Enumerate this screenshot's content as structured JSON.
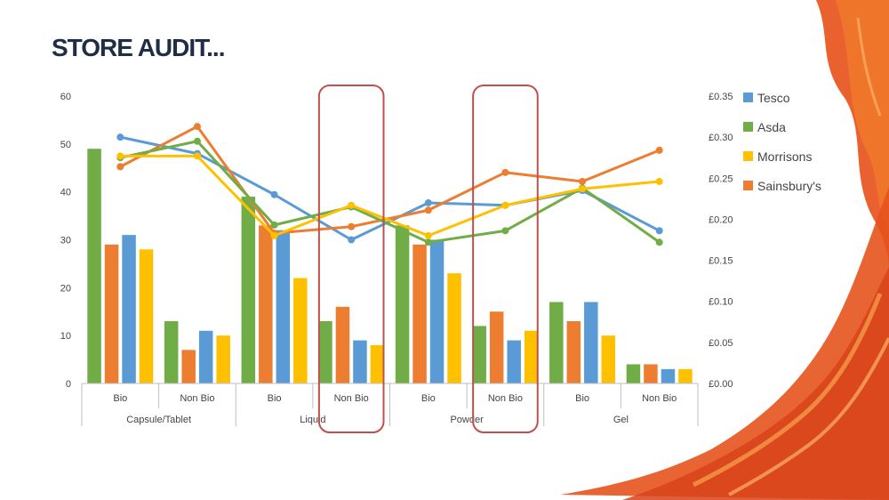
{
  "slide": {
    "title": "STORE AUDIT..."
  },
  "highlight_color": "#c0504d",
  "chart_data": {
    "type": "bar",
    "groups": [
      "Capsule/Tablet",
      "Liquid",
      "Powder",
      "Gel"
    ],
    "subcategories": [
      "Bio",
      "Non Bio"
    ],
    "categories": [
      "Bio",
      "Non Bio",
      "Bio",
      "Non Bio",
      "Bio",
      "Non Bio",
      "Bio",
      "Non Bio"
    ],
    "ylim": [
      0,
      60
    ],
    "y_ticks": [
      "0",
      "10",
      "20",
      "30",
      "40",
      "50",
      "60"
    ],
    "y2lim": [
      0,
      0.35
    ],
    "y2_ticks": [
      "£0.00",
      "£0.05",
      "£0.10",
      "£0.15",
      "£0.20",
      "£0.25",
      "£0.30",
      "£0.35"
    ],
    "bar_order": [
      "Asda",
      "Sainsbury's",
      "Tesco",
      "Morrisons"
    ],
    "series": [
      {
        "name": "Tesco",
        "color": "#5b9bd5",
        "bars": [
          31,
          11,
          32,
          9,
          30,
          9,
          17,
          3
        ],
        "line": [
          0.3,
          0.28,
          0.23,
          0.175,
          0.22,
          0.217,
          0.235,
          0.186
        ]
      },
      {
        "name": "Asda",
        "color": "#70ad47",
        "bars": [
          49,
          13,
          39,
          13,
          33,
          12,
          17,
          4
        ],
        "line": [
          0.275,
          0.295,
          0.193,
          0.215,
          0.172,
          0.186,
          0.238,
          0.172
        ]
      },
      {
        "name": "Morrisons",
        "color": "#ffc000",
        "bars": [
          28,
          10,
          22,
          8,
          23,
          11,
          10,
          3
        ],
        "line": [
          0.277,
          0.277,
          0.18,
          0.217,
          0.18,
          0.217,
          0.237,
          0.246
        ]
      },
      {
        "name": "Sainsbury's",
        "color": "#ed7d31",
        "bars": [
          29,
          7,
          33,
          16,
          29,
          15,
          13,
          4
        ],
        "line": [
          0.264,
          0.313,
          0.183,
          0.191,
          0.211,
          0.257,
          0.246,
          0.284
        ]
      }
    ],
    "highlighted_categories": [
      3,
      5
    ],
    "grid": false,
    "legend_position": "right"
  }
}
